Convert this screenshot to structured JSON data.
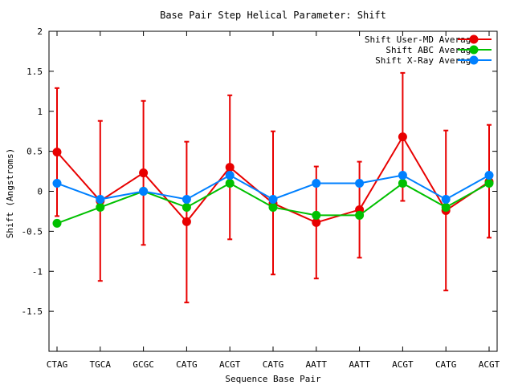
{
  "chart_data": {
    "type": "line",
    "title": "Base Pair Step Helical Parameter: Shift",
    "xlabel": "Sequence Base Pair",
    "ylabel": "Shift (Angstroms)",
    "categories": [
      "CTAG",
      "TGCA",
      "GCGC",
      "CATG",
      "ACGT",
      "CATG",
      "AATT",
      "AATT",
      "ACGT",
      "CATG",
      "ACGT"
    ],
    "ylim": [
      -2,
      2
    ],
    "yticks": [
      -1.5,
      -1,
      -0.5,
      0,
      0.5,
      1,
      1.5,
      2
    ],
    "ytick_labels": [
      "-1.5",
      "-1",
      "-0.5",
      "0",
      "0.5",
      "1",
      "1.5",
      "2"
    ],
    "grid": false,
    "legend_position": "top-right",
    "series": [
      {
        "name": "Shift User-MD Average",
        "color": "#e80000",
        "values": [
          0.49,
          -0.12,
          0.23,
          -0.38,
          0.3,
          -0.15,
          -0.39,
          -0.23,
          0.68,
          -0.24,
          0.12
        ],
        "error_low": [
          -0.31,
          -1.12,
          -0.67,
          -1.39,
          -0.6,
          -1.04,
          -1.09,
          -0.83,
          -0.12,
          -1.24,
          -0.58
        ],
        "error_high": [
          1.29,
          0.88,
          1.13,
          0.62,
          1.2,
          0.75,
          0.31,
          0.37,
          1.48,
          0.76,
          0.83
        ]
      },
      {
        "name": "Shift ABC Average",
        "color": "#00c000",
        "values": [
          -0.4,
          -0.2,
          0.0,
          -0.2,
          0.1,
          -0.2,
          -0.3,
          -0.3,
          0.1,
          -0.2,
          0.1
        ]
      },
      {
        "name": "Shift X-Ray Average",
        "color": "#0080ff",
        "values": [
          0.1,
          -0.1,
          0.0,
          -0.1,
          0.2,
          -0.1,
          0.1,
          0.1,
          0.2,
          -0.1,
          0.2
        ]
      }
    ]
  }
}
